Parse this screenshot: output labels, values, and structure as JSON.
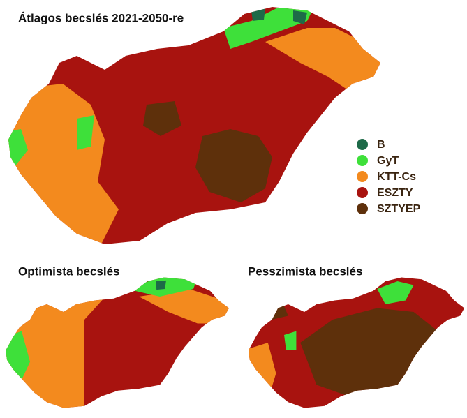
{
  "maps": [
    {
      "title": "Átlagos becslés 2021-2050-re"
    },
    {
      "title": "Optimista becslés"
    },
    {
      "title": "Pesszimista becslés"
    }
  ],
  "legend": [
    {
      "label": "B",
      "color": "#1d6a48"
    },
    {
      "label": "GyT",
      "color": "#3ee03a"
    },
    {
      "label": "KTT-Cs",
      "color": "#f38a1e"
    },
    {
      "label": "ESZTY",
      "color": "#a8130f"
    },
    {
      "label": "SZTYEP",
      "color": "#5e300b"
    }
  ]
}
